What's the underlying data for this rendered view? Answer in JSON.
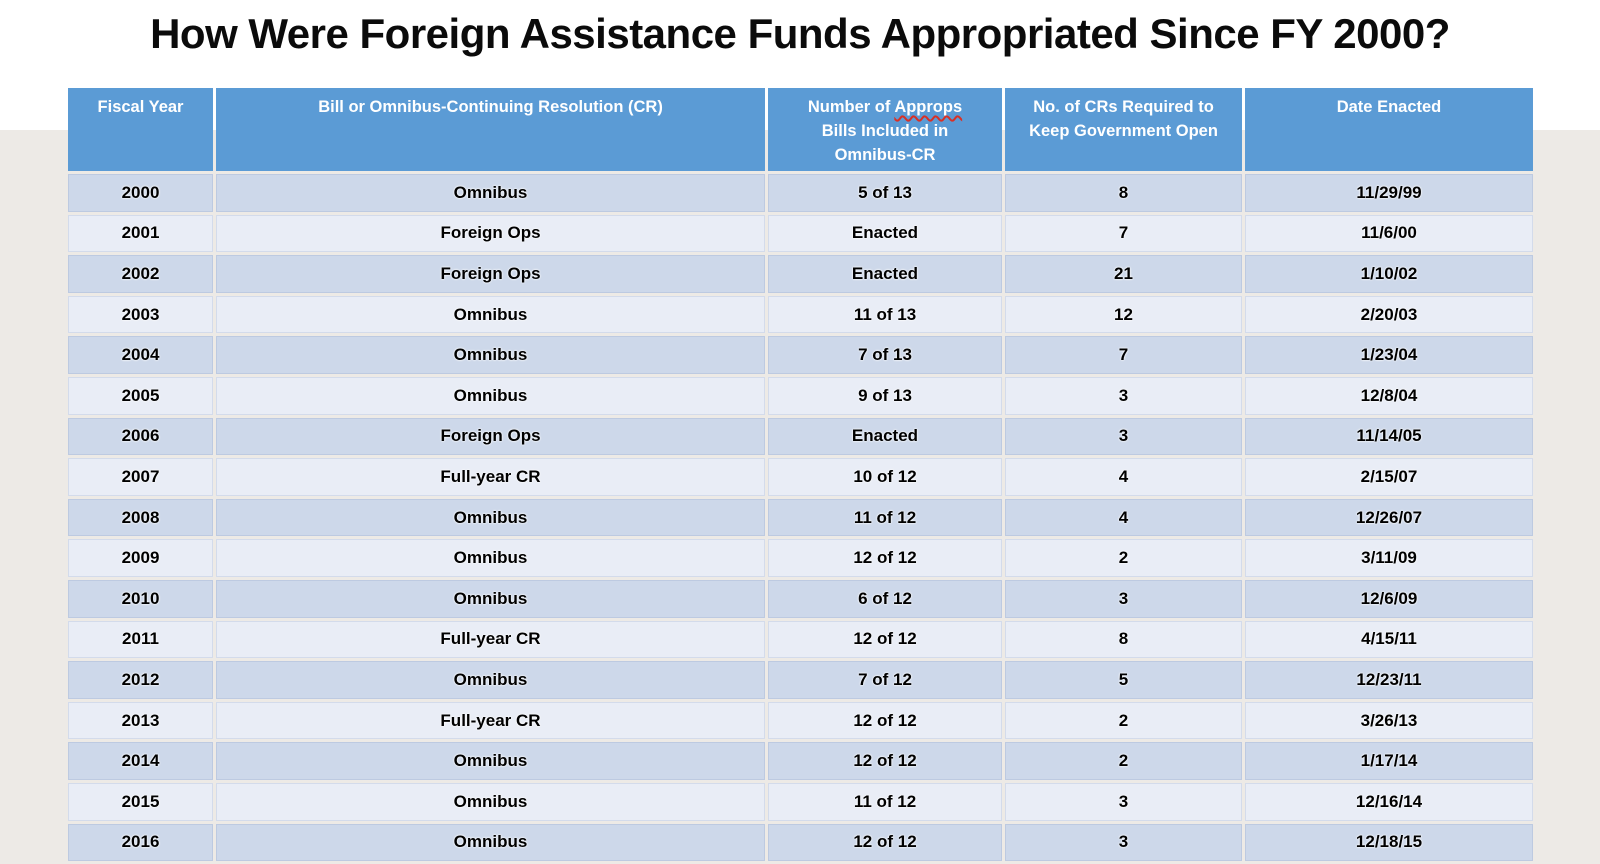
{
  "title": "How Were Foreign Assistance Funds Appropriated Since FY 2000?",
  "colors": {
    "header_bg": "#5B9BD5",
    "header_text": "#FFFFFF",
    "row_dark": "#CDD8EA",
    "row_light": "#E9EDF6",
    "page_bg_top": "#FFFFFF",
    "page_bg_bottom": "#EDEAE6",
    "title_text": "#0B0B0B",
    "body_text": "#000000",
    "spellcheck_red": "#D93025"
  },
  "table": {
    "columns": [
      {
        "id": "fiscal_year",
        "label": "Fiscal Year"
      },
      {
        "id": "bill",
        "label": "Bill or Omnibus-Continuing Resolution (CR)"
      },
      {
        "id": "approps_bills",
        "label_prefix": "Number of ",
        "label_misspelled": "Approps",
        "label_suffix": " Bills Included in Omnibus-CR"
      },
      {
        "id": "crs_required",
        "label": "No. of CRs Required to Keep Government Open"
      },
      {
        "id": "date_enacted",
        "label": "Date Enacted"
      }
    ],
    "rows": [
      [
        "2000",
        "Omnibus",
        "5 of 13",
        "8",
        "11/29/99"
      ],
      [
        "2001",
        "Foreign Ops",
        "Enacted",
        "7",
        "11/6/00"
      ],
      [
        "2002",
        "Foreign Ops",
        "Enacted",
        "21",
        "1/10/02"
      ],
      [
        "2003",
        "Omnibus",
        "11 of 13",
        "12",
        "2/20/03"
      ],
      [
        "2004",
        "Omnibus",
        "7 of 13",
        "7",
        "1/23/04"
      ],
      [
        "2005",
        "Omnibus",
        "9 of 13",
        "3",
        "12/8/04"
      ],
      [
        "2006",
        "Foreign Ops",
        "Enacted",
        "3",
        "11/14/05"
      ],
      [
        "2007",
        "Full-year CR",
        "10 of 12",
        "4",
        "2/15/07"
      ],
      [
        "2008",
        "Omnibus",
        "11 of 12",
        "4",
        "12/26/07"
      ],
      [
        "2009",
        "Omnibus",
        "12 of 12",
        "2",
        "3/11/09"
      ],
      [
        "2010",
        "Omnibus",
        "6 of 12",
        "3",
        "12/6/09"
      ],
      [
        "2011",
        "Full-year CR",
        "12 of 12",
        "8",
        "4/15/11"
      ],
      [
        "2012",
        "Omnibus",
        "7 of 12",
        "5",
        "12/23/11"
      ],
      [
        "2013",
        "Full-year CR",
        "12 of 12",
        "2",
        "3/26/13"
      ],
      [
        "2014",
        "Omnibus",
        "12 of 12",
        "2",
        "1/17/14"
      ],
      [
        "2015",
        "Omnibus",
        "11 of 12",
        "3",
        "12/16/14"
      ],
      [
        "2016",
        "Omnibus",
        "12 of 12",
        "3",
        "12/18/15"
      ]
    ]
  }
}
